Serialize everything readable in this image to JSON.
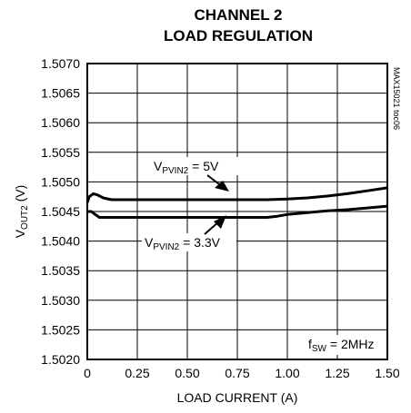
{
  "chart_data": {
    "type": "line",
    "title": [
      "CHANNEL 2",
      "LOAD REGULATION"
    ],
    "xlabel": "LOAD CURRENT (A)",
    "ylabel": {
      "main": "V",
      "sub": "OUT2",
      "unit": " (V)"
    },
    "xlim": [
      0,
      1.5
    ],
    "ylim": [
      1.502,
      1.507
    ],
    "x_ticks": [
      0,
      0.25,
      0.5,
      0.75,
      1.0,
      1.25,
      1.5
    ],
    "x_tick_labels": [
      "0",
      "0.25",
      "0.50",
      "0.75",
      "1.00",
      "1.25",
      "1.50"
    ],
    "y_ticks": [
      1.502,
      1.5025,
      1.503,
      1.5035,
      1.504,
      1.5045,
      1.505,
      1.5055,
      1.506,
      1.5065,
      1.507
    ],
    "y_tick_labels": [
      "1.5020",
      "1.5025",
      "1.5030",
      "1.5035",
      "1.5040",
      "1.5045",
      "1.5050",
      "1.5055",
      "1.5060",
      "1.5065",
      "1.5070"
    ],
    "grid": true,
    "series": [
      {
        "label": {
          "main": "V",
          "sub": "PVIN2",
          "value": " = 5V"
        },
        "x": [
          0,
          0.01,
          0.03,
          0.05,
          0.08,
          0.12,
          0.2,
          0.3,
          0.5,
          0.7,
          0.9,
          1.0,
          1.1,
          1.2,
          1.3,
          1.4,
          1.5
        ],
        "y": [
          1.50465,
          1.50475,
          1.5048,
          1.50478,
          1.50473,
          1.5047,
          1.5047,
          1.5047,
          1.5047,
          1.5047,
          1.5047,
          1.50471,
          1.50473,
          1.50476,
          1.5048,
          1.50485,
          1.5049
        ]
      },
      {
        "label": {
          "main": "V",
          "sub": "PVIN2",
          "value": " = 3.3V"
        },
        "x": [
          0,
          0.02,
          0.04,
          0.06,
          0.1,
          0.3,
          0.5,
          0.7,
          0.9,
          0.95,
          1.0,
          1.1,
          1.2,
          1.3,
          1.4,
          1.5
        ],
        "y": [
          1.5045,
          1.5045,
          1.50445,
          1.5044,
          1.5044,
          1.5044,
          1.5044,
          1.5044,
          1.5044,
          1.50442,
          1.50445,
          1.50448,
          1.50451,
          1.50453,
          1.50456,
          1.50459
        ]
      }
    ],
    "annotation": {
      "main": "f",
      "sub": "SW",
      "value": " = 2MHz"
    },
    "watermark": "MAX15021 toc06"
  }
}
